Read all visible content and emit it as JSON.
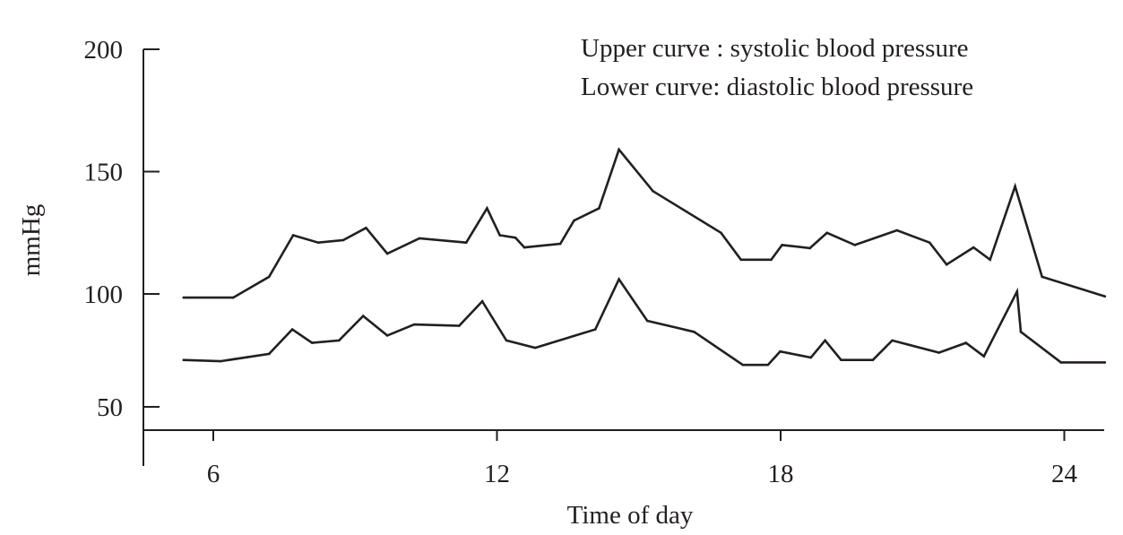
{
  "chart_data": {
    "type": "line",
    "title": "",
    "xlabel": "Time of day",
    "ylabel": "mmHg",
    "xlim": [
      5,
      24.9
    ],
    "ylim": [
      50,
      200
    ],
    "xticks": [
      6,
      12,
      18,
      24
    ],
    "yticks": [
      50,
      100,
      150,
      200
    ],
    "grid": false,
    "annotations": [
      "Upper curve : systolic blood pressure",
      "Lower curve: diastolic blood pressure"
    ],
    "series": [
      {
        "name": "systolic blood pressure",
        "color": "#231f20",
        "x": [
          5.37,
          6.42,
          7.18,
          7.69,
          8.22,
          8.75,
          9.23,
          9.68,
          10.36,
          11.35,
          11.79,
          12.06,
          12.39,
          12.58,
          13.34,
          13.63,
          14.16,
          14.58,
          15.3,
          16.74,
          17.16,
          17.8,
          18.03,
          18.62,
          18.98,
          19.57,
          20.46,
          21.15,
          21.51,
          22.08,
          22.43,
          22.96,
          23.53,
          24.86
        ],
        "y": [
          98.5,
          98.5,
          107,
          124,
          121,
          122,
          127,
          116.5,
          122.7,
          121,
          135,
          124,
          123,
          119,
          120.5,
          130,
          135,
          159,
          142,
          125,
          114,
          114,
          120,
          118.7,
          125,
          120,
          126,
          121,
          112,
          119,
          114,
          144,
          107,
          99
        ]
      },
      {
        "name": "diastolic blood pressure",
        "color": "#231f20",
        "x": [
          5.37,
          6.15,
          7.18,
          7.67,
          8.09,
          8.66,
          9.17,
          9.68,
          10.25,
          11.2,
          11.69,
          12.2,
          12.81,
          14.08,
          14.58,
          15.18,
          16.17,
          17.2,
          17.73,
          17.99,
          18.64,
          18.94,
          19.28,
          19.95,
          20.36,
          21.35,
          21.92,
          22.3,
          23.0,
          23.08,
          23.93,
          24.86
        ],
        "y": [
          73,
          72.5,
          75.5,
          85.5,
          80,
          81,
          91,
          83,
          87.5,
          87,
          97,
          81,
          78,
          85.5,
          106,
          89,
          84.5,
          71,
          71,
          76.5,
          74,
          81,
          73,
          73,
          81,
          76,
          80,
          74.5,
          101,
          84.5,
          72,
          72
        ]
      }
    ]
  }
}
